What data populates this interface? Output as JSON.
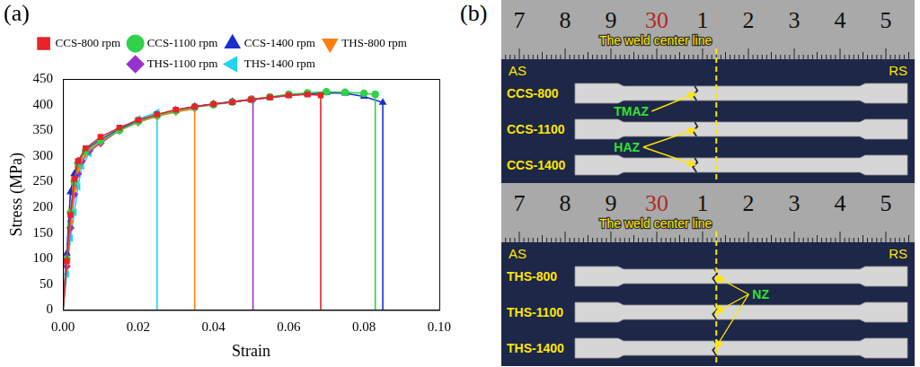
{
  "panel_labels": [
    "(a)",
    "(b)"
  ],
  "chart_data": {
    "type": "line",
    "xlabel": "Strain",
    "ylabel": "Stress (MPa)",
    "xlim": [
      0,
      0.1
    ],
    "xticks": [
      {
        "value": 0,
        "label": "0.00"
      },
      0.02,
      0.04,
      0.06,
      0.08,
      {
        "value": 0.1,
        "label": "0.10"
      }
    ],
    "ylim": [
      0,
      450
    ],
    "yticks": [
      0,
      50,
      100,
      150,
      200,
      250,
      300,
      350,
      400,
      450
    ],
    "grid": false,
    "legend": "top",
    "series": [
      {
        "name": "CCS-800 rpm",
        "color": "#e8232a",
        "marker": "square",
        "x": [
          0,
          0.001,
          0.002,
          0.003,
          0.004,
          0.006,
          0.01,
          0.015,
          0.02,
          0.025,
          0.03,
          0.035,
          0.04,
          0.045,
          0.05,
          0.055,
          0.06,
          0.065,
          0.0685,
          0.0685
        ],
        "values": [
          0,
          95,
          185,
          255,
          290,
          315,
          337,
          355,
          370,
          381,
          390,
          396,
          401,
          405,
          410,
          414,
          418,
          420,
          418,
          0
        ]
      },
      {
        "name": "CCS-1100 rpm",
        "color": "#2fd24a",
        "marker": "circle",
        "x": [
          0,
          0.001,
          0.002,
          0.003,
          0.004,
          0.006,
          0.01,
          0.015,
          0.02,
          0.025,
          0.03,
          0.035,
          0.04,
          0.045,
          0.05,
          0.055,
          0.06,
          0.065,
          0.07,
          0.075,
          0.08,
          0.083,
          0.083
        ],
        "values": [
          0,
          100,
          190,
          250,
          285,
          310,
          330,
          350,
          367,
          379,
          388,
          395,
          400,
          405,
          410,
          415,
          420,
          423,
          425,
          424,
          422,
          420,
          0
        ]
      },
      {
        "name": "CCS-1400 rpm",
        "color": "#1a2ecc",
        "marker": "triangle",
        "x": [
          0,
          0.001,
          0.002,
          0.003,
          0.004,
          0.006,
          0.01,
          0.015,
          0.02,
          0.025,
          0.03,
          0.035,
          0.04,
          0.045,
          0.05,
          0.055,
          0.06,
          0.065,
          0.07,
          0.075,
          0.08,
          0.085,
          0.085
        ],
        "values": [
          0,
          110,
          230,
          265,
          290,
          312,
          332,
          352,
          368,
          380,
          389,
          396,
          401,
          405,
          410,
          414,
          418,
          421,
          423,
          422,
          416,
          404,
          0
        ]
      },
      {
        "name": "THS-800 rpm",
        "color": "#ff7f0e",
        "marker": "triangle-down",
        "x": [
          0,
          0.001,
          0.002,
          0.003,
          0.004,
          0.006,
          0.01,
          0.015,
          0.02,
          0.025,
          0.03,
          0.035,
          0.035
        ],
        "values": [
          0,
          90,
          170,
          235,
          275,
          305,
          328,
          350,
          366,
          377,
          386,
          392,
          0
        ]
      },
      {
        "name": "THS-1100 rpm",
        "color": "#9932cc",
        "marker": "diamond",
        "x": [
          0,
          0.001,
          0.002,
          0.003,
          0.004,
          0.005,
          0.007,
          0.01,
          0.015,
          0.02,
          0.025,
          0.03,
          0.035,
          0.04,
          0.045,
          0.0505,
          0.0505
        ],
        "values": [
          0,
          85,
          160,
          225,
          265,
          290,
          310,
          325,
          350,
          366,
          378,
          388,
          396,
          401,
          406,
          410,
          0
        ]
      },
      {
        "name": "THS-1400 rpm",
        "color": "#22d3ee",
        "marker": "triangle-left",
        "x": [
          0,
          0.001,
          0.002,
          0.003,
          0.004,
          0.005,
          0.007,
          0.01,
          0.015,
          0.02,
          0.025,
          0.025
        ],
        "values": [
          0,
          70,
          140,
          190,
          240,
          280,
          305,
          330,
          352,
          372,
          385,
          0
        ]
      }
    ]
  },
  "photo": {
    "groups": [
      {
        "ruler": [
          "7",
          "8",
          "9",
          "30",
          "1",
          "2",
          "3",
          "4",
          "5"
        ],
        "center_line_label": "The weld center line",
        "sides": [
          "AS",
          "RS"
        ],
        "specimens": [
          "CCS-800",
          "CCS-1100",
          "CCS-1400"
        ],
        "annotations": [
          {
            "text": "TMAZ",
            "targets": [
              "CCS-800"
            ]
          },
          {
            "text": "HAZ",
            "targets": [
              "CCS-1100",
              "CCS-1400"
            ]
          }
        ]
      },
      {
        "ruler": [
          "7",
          "8",
          "9",
          "30",
          "1",
          "2",
          "3",
          "4",
          "5"
        ],
        "center_line_label": "The weld center line",
        "sides": [
          "AS",
          "RS"
        ],
        "specimens": [
          "THS-800",
          "THS-1100",
          "THS-1400"
        ],
        "annotations": [
          {
            "text": "NZ",
            "targets": [
              "THS-800",
              "THS-1100",
              "THS-1400"
            ]
          }
        ]
      }
    ]
  }
}
